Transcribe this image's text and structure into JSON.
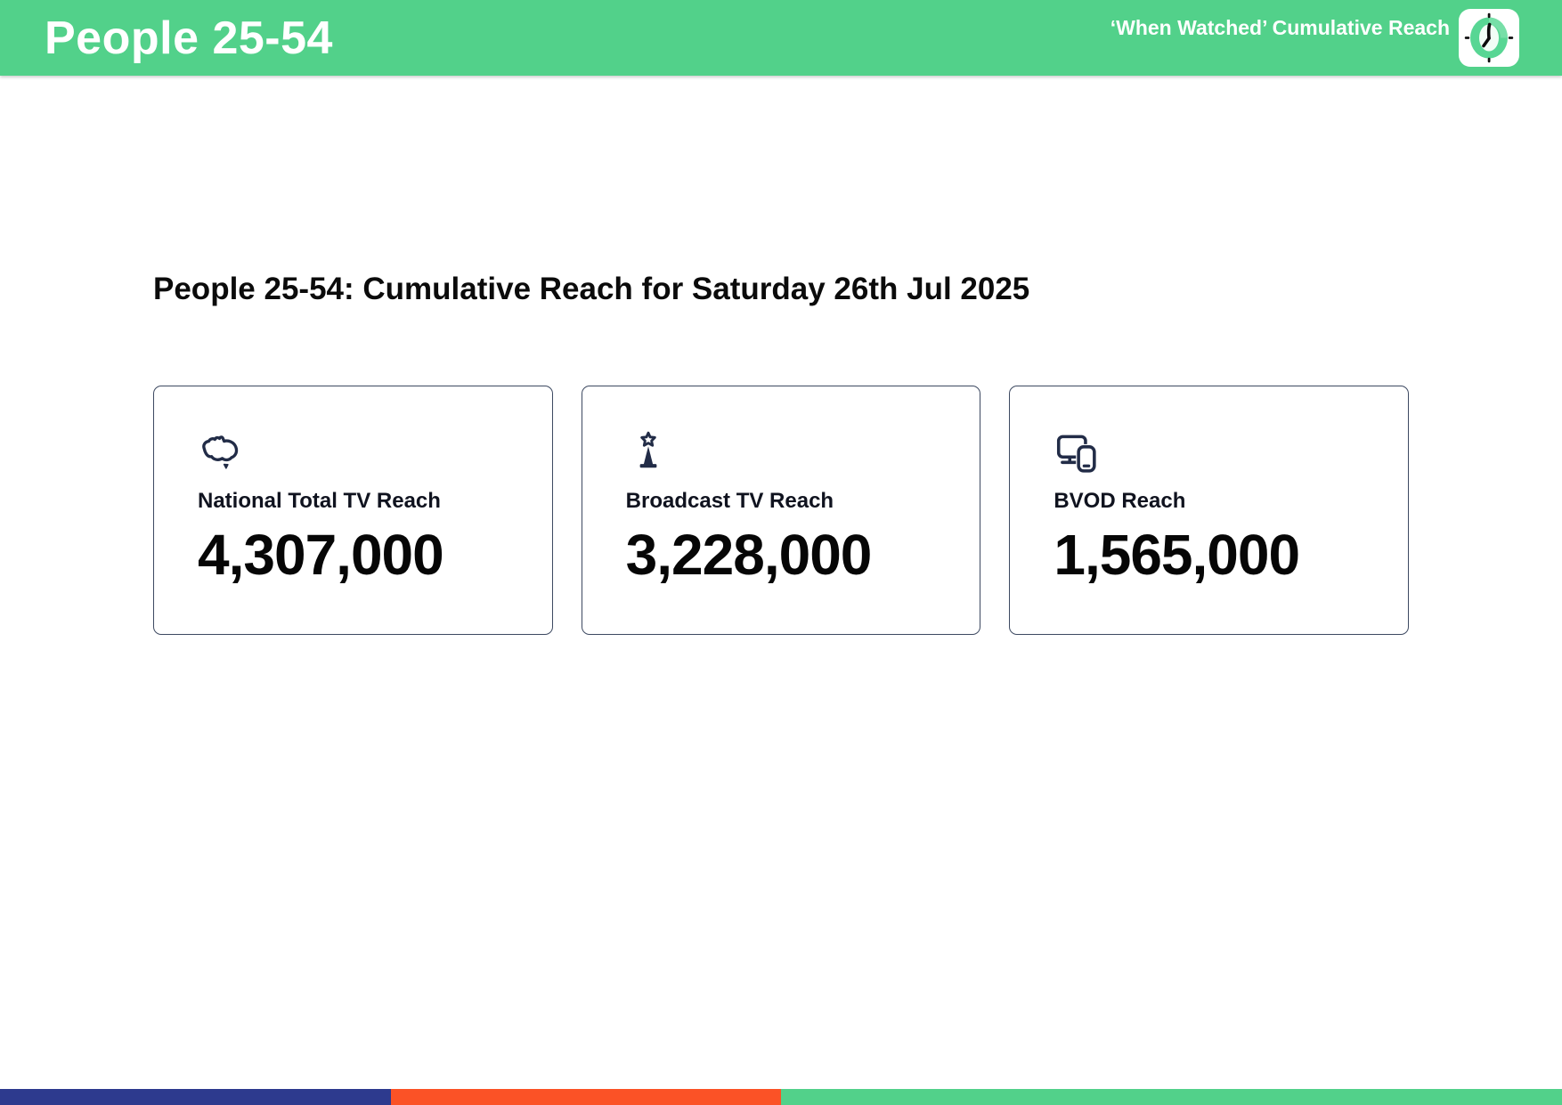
{
  "header": {
    "title": "People 25-54",
    "subtitle": "‘When Watched’ Cumulative Reach",
    "logo_icon": "clock-icon",
    "background_color": "#52d18a"
  },
  "main": {
    "heading": "People 25-54: Cumulative Reach for Saturday 26th Jul 2025",
    "icon_color": "#222c47",
    "cards": [
      {
        "icon": "australia-map-icon",
        "label": "National Total TV Reach",
        "value": "4,307,000"
      },
      {
        "icon": "broadcast-tower-icon",
        "label": "Broadcast TV Reach",
        "value": "3,228,000"
      },
      {
        "icon": "devices-icon",
        "label": "BVOD Reach",
        "value": "1,565,000"
      }
    ]
  },
  "chart_data": {
    "type": "table",
    "title": "People 25-54: Cumulative Reach for Saturday 26th Jul 2025",
    "categories": [
      "National Total TV Reach",
      "Broadcast TV Reach",
      "BVOD Reach"
    ],
    "values": [
      4307000,
      3228000,
      1565000
    ]
  },
  "footer": {
    "segments": [
      {
        "name": "blue",
        "color": "#2d3a8e",
        "width_pct": 25
      },
      {
        "name": "orange",
        "color": "#fb5226",
        "width_pct": 25
      },
      {
        "name": "green",
        "color": "#52d18a",
        "width_pct": 50
      }
    ]
  }
}
